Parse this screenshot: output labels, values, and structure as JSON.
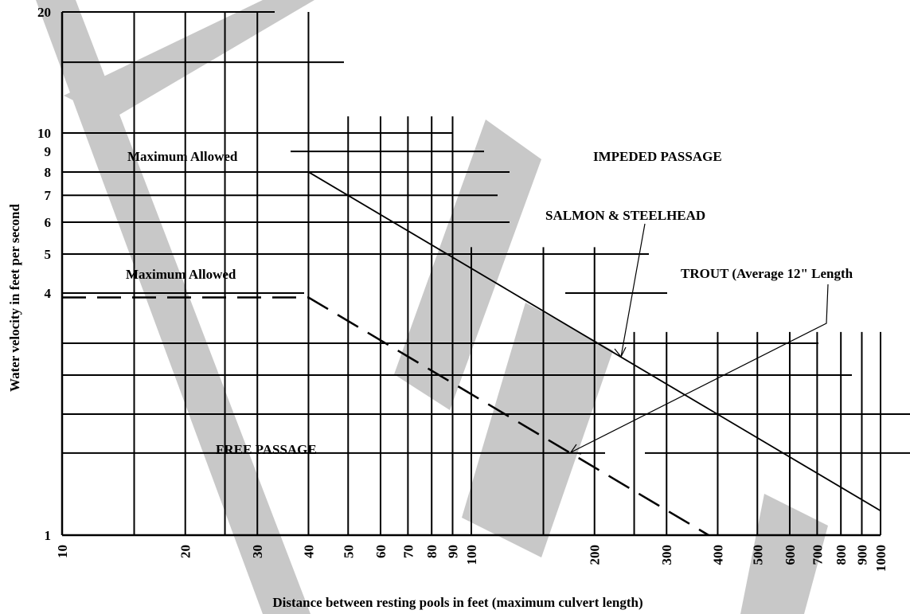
{
  "chart_data": {
    "type": "line",
    "xscale": "log",
    "yscale": "log",
    "xlim": [
      10,
      1000
    ],
    "ylim": [
      1,
      20
    ],
    "x_ticks": [
      10,
      20,
      30,
      40,
      50,
      60,
      70,
      80,
      90,
      100,
      200,
      300,
      400,
      500,
      600,
      700,
      800,
      900,
      1000
    ],
    "x_tick_labels": [
      "10",
      "20",
      "30",
      "40",
      "50",
      "60",
      "70",
      "80",
      "90",
      "100",
      "200",
      "300",
      "400",
      "500",
      "600",
      "700",
      "800",
      "900",
      "1000"
    ],
    "y_ticks": [
      1,
      4,
      5,
      6,
      7,
      8,
      9,
      10,
      20
    ],
    "y_tick_labels": [
      "1",
      "4",
      "5",
      "6",
      "7",
      "8",
      "9",
      "10",
      "20"
    ],
    "xlabel": "Distance between resting pools in feet  (maximum culvert length)",
    "ylabel": "Water velocity in feet per second",
    "grid": true,
    "series": [
      {
        "name": "SALMON & STEELHEAD",
        "style": "solid",
        "x": [
          10,
          40,
          1000
        ],
        "y": [
          8,
          8,
          1.15
        ],
        "max_label": "Maximum Allowed"
      },
      {
        "name": "TROUT (Average 12\" Length",
        "style": "dashed",
        "x": [
          10,
          40,
          380
        ],
        "y": [
          3.9,
          3.9,
          1
        ],
        "max_label": "Maximum Allowed"
      }
    ],
    "annotations": [
      {
        "text": "IMPEDED PASSAGE",
        "x": 440,
        "y": 8.9
      },
      {
        "text": "FREE PASSAGE",
        "x": 21,
        "y": 1.6
      }
    ]
  },
  "colors": {
    "ink": "#000000",
    "watermark": "#c8c8c8",
    "background": "#ffffff"
  }
}
